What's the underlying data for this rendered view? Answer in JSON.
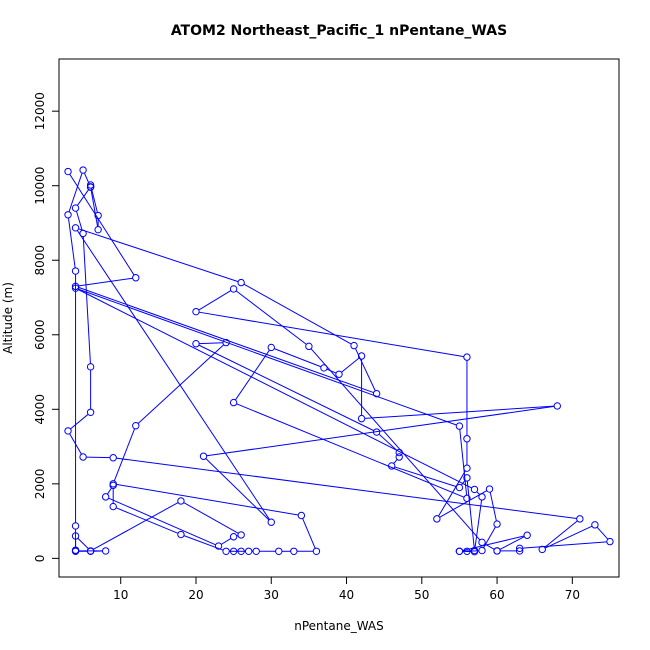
{
  "chart_data": {
    "type": "scatter",
    "title": "ATOM2 Northeast_Pacific_1 nPentane_WAS",
    "xlabel": "nPentane_WAS",
    "ylabel": "Altitude (m)",
    "xlim": [
      1.8,
      76.2
    ],
    "ylim": [
      -500,
      13400
    ],
    "xticks": [
      10,
      20,
      30,
      40,
      50,
      60,
      70
    ],
    "yticks": [
      0,
      2000,
      4000,
      6000,
      8000,
      10000,
      12000
    ],
    "grid": false,
    "legend": "none",
    "color": "#0000ff",
    "marker": "open-circle",
    "connected": true,
    "series": [
      {
        "points": [
          [
            3,
            10380
          ],
          [
            12,
            7530
          ],
          [
            4,
            7300
          ],
          [
            44,
            4420
          ],
          [
            41,
            5710
          ],
          [
            26,
            7400
          ],
          [
            4,
            8870
          ],
          [
            30,
            970
          ],
          [
            21,
            2740
          ],
          [
            68,
            4090
          ],
          [
            42,
            3750
          ],
          [
            42,
            5430
          ],
          [
            39,
            4940
          ],
          [
            37,
            5110
          ],
          [
            30,
            5660
          ],
          [
            25,
            4180
          ],
          [
            56,
            1610
          ],
          [
            55,
            3550
          ],
          [
            4,
            7250
          ],
          [
            57,
            1850
          ],
          [
            58,
            1650
          ],
          [
            57,
            180
          ],
          [
            55,
            190
          ],
          [
            56,
            190
          ],
          [
            58,
            210
          ],
          [
            60,
            920
          ],
          [
            59,
            1860
          ],
          [
            52,
            1060
          ],
          [
            56,
            2420
          ],
          [
            56,
            3210
          ],
          [
            56,
            5400
          ],
          [
            20,
            6620
          ],
          [
            25,
            7230
          ],
          [
            35,
            5690
          ],
          [
            58,
            430
          ],
          [
            60,
            200
          ],
          [
            63,
            200
          ],
          [
            63,
            270
          ],
          [
            75,
            450
          ],
          [
            73,
            900
          ],
          [
            66,
            240
          ],
          [
            71,
            1060
          ],
          [
            9,
            2700
          ],
          [
            5,
            2720
          ],
          [
            3,
            3420
          ],
          [
            6,
            3920
          ],
          [
            6,
            5140
          ],
          [
            5,
            8720
          ],
          [
            4,
            9400
          ],
          [
            6,
            9970
          ],
          [
            6,
            10020
          ],
          [
            7,
            9200
          ],
          [
            7,
            8820
          ],
          [
            6,
            9960
          ],
          [
            5,
            10420
          ],
          [
            3,
            9220
          ],
          [
            4,
            7710
          ],
          [
            4,
            870
          ],
          [
            4,
            220
          ],
          [
            4,
            190
          ],
          [
            6,
            190
          ],
          [
            8,
            200
          ],
          [
            4,
            200
          ],
          [
            4,
            600
          ],
          [
            6,
            200
          ],
          [
            18,
            1540
          ],
          [
            26,
            630
          ],
          [
            25,
            580
          ],
          [
            23,
            330
          ],
          [
            8,
            1650
          ],
          [
            9,
            1960
          ],
          [
            9,
            1390
          ],
          [
            18,
            640
          ],
          [
            24,
            190
          ],
          [
            26,
            190
          ],
          [
            25,
            190
          ],
          [
            27,
            190
          ],
          [
            28,
            190
          ],
          [
            31,
            190
          ],
          [
            33,
            190
          ],
          [
            36,
            190
          ],
          [
            34,
            1150
          ],
          [
            9,
            2000
          ],
          [
            12,
            3560
          ],
          [
            24,
            5790
          ],
          [
            20,
            5760
          ],
          [
            44,
            3390
          ],
          [
            47,
            2840
          ],
          [
            47,
            2720
          ],
          [
            46,
            2480
          ],
          [
            55,
            1900
          ],
          [
            56,
            2160
          ],
          [
            57,
            210
          ],
          [
            55,
            190
          ],
          [
            64,
            620
          ],
          [
            60,
            200
          ]
        ]
      }
    ]
  }
}
